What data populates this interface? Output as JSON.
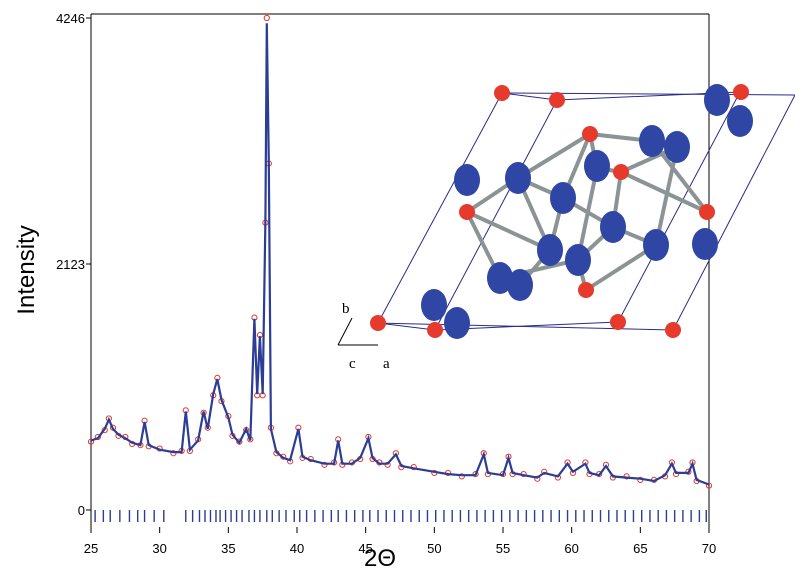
{
  "chart_data": {
    "type": "line",
    "xlabel": "2Θ",
    "ylabel": "Intensity",
    "xlim": [
      25,
      70
    ],
    "ylim": [
      0,
      4246
    ],
    "xticks": [
      25,
      30,
      35,
      40,
      45,
      50,
      55,
      60,
      65,
      70
    ],
    "yticks": [
      0,
      2123,
      4246
    ],
    "x": [
      25,
      25.5,
      26,
      26.3,
      26.6,
      27,
      27.5,
      28,
      28.6,
      28.9,
      29.2,
      30,
      31,
      31.6,
      31.9,
      32.2,
      32.8,
      33.2,
      33.5,
      33.9,
      34.2,
      34.5,
      35,
      35.3,
      35.8,
      36.3,
      36.6,
      36.9,
      37.1,
      37.3,
      37.5,
      37.7,
      37.8,
      37.95,
      38.1,
      38.5,
      39,
      39.5,
      40.1,
      40.4,
      41,
      42,
      42.7,
      43,
      43.3,
      44,
      44.6,
      45.2,
      45.5,
      46,
      46.6,
      47.2,
      47.6,
      48.5,
      50,
      51,
      52,
      53,
      53.6,
      53.9,
      55,
      55.4,
      55.7,
      56.5,
      57.5,
      58,
      59,
      59.7,
      60.1,
      61,
      61.3,
      62,
      62.5,
      63,
      64,
      65,
      66,
      66.8,
      67.3,
      67.6,
      68.5,
      68.8,
      69.1,
      70
    ],
    "series": [
      {
        "color": "#e03a2e",
        "style": "markers",
        "values": [
          590,
          630,
          690,
          790,
          710,
          640,
          630,
          570,
          560,
          770,
          550,
          530,
          490,
          510,
          860,
          510,
          610,
          840,
          710,
          990,
          1140,
          940,
          810,
          640,
          590,
          690,
          610,
          1660,
          990,
          1510,
          990,
          2480,
          4246,
          2990,
          710,
          490,
          460,
          420,
          710,
          450,
          440,
          390,
          410,
          610,
          390,
          410,
          440,
          630,
          440,
          410,
          390,
          490,
          370,
          370,
          320,
          320,
          290,
          310,
          490,
          310,
          310,
          460,
          310,
          310,
          270,
          330,
          280,
          410,
          320,
          410,
          310,
          310,
          390,
          280,
          290,
          260,
          260,
          290,
          410,
          310,
          330,
          410,
          250,
          210
        ]
      },
      {
        "color": "#2b3d95",
        "style": "line",
        "values": [
          600,
          620,
          700,
          780,
          700,
          650,
          620,
          580,
          560,
          760,
          560,
          520,
          500,
          500,
          850,
          520,
          600,
          850,
          700,
          1000,
          1130,
          950,
          800,
          650,
          580,
          700,
          600,
          1650,
          1000,
          1500,
          1000,
          2500,
          4200,
          3000,
          700,
          500,
          450,
          430,
          700,
          460,
          430,
          400,
          400,
          600,
          400,
          400,
          450,
          620,
          450,
          400,
          400,
          480,
          380,
          360,
          330,
          310,
          300,
          300,
          480,
          320,
          300,
          450,
          320,
          300,
          280,
          320,
          290,
          400,
          330,
          400,
          320,
          300,
          380,
          290,
          280,
          270,
          250,
          300,
          400,
          320,
          320,
          400,
          260,
          220
        ]
      }
    ],
    "reflections": {
      "color": "#2b3d95",
      "x": [
        25.3,
        25.9,
        26.4,
        27.1,
        27.8,
        28.4,
        28.9,
        29.6,
        30.3,
        31.9,
        32.4,
        32.9,
        33.3,
        33.7,
        34.1,
        34.4,
        34.8,
        35.2,
        35.6,
        36.0,
        36.5,
        36.9,
        37.3,
        37.8,
        38.2,
        38.7,
        39.2,
        39.8,
        40.2,
        40.7,
        41.3,
        41.9,
        42.5,
        43.0,
        43.6,
        44.2,
        44.8,
        45.3,
        45.9,
        46.5,
        47.1,
        47.7,
        48.3,
        48.9,
        49.5,
        50.1,
        50.7,
        51.3,
        51.9,
        52.5,
        53.1,
        53.7,
        54.3,
        54.9,
        55.5,
        56.1,
        56.7,
        57.3,
        57.9,
        58.5,
        59.1,
        59.7,
        60.3,
        60.9,
        61.5,
        62.1,
        62.7,
        63.3,
        63.9,
        64.5,
        65.1,
        65.7,
        66.3,
        66.9,
        67.5,
        68.1,
        68.7,
        69.3,
        69.8
      ]
    },
    "inset_labels": [
      "a",
      "b",
      "c"
    ]
  }
}
